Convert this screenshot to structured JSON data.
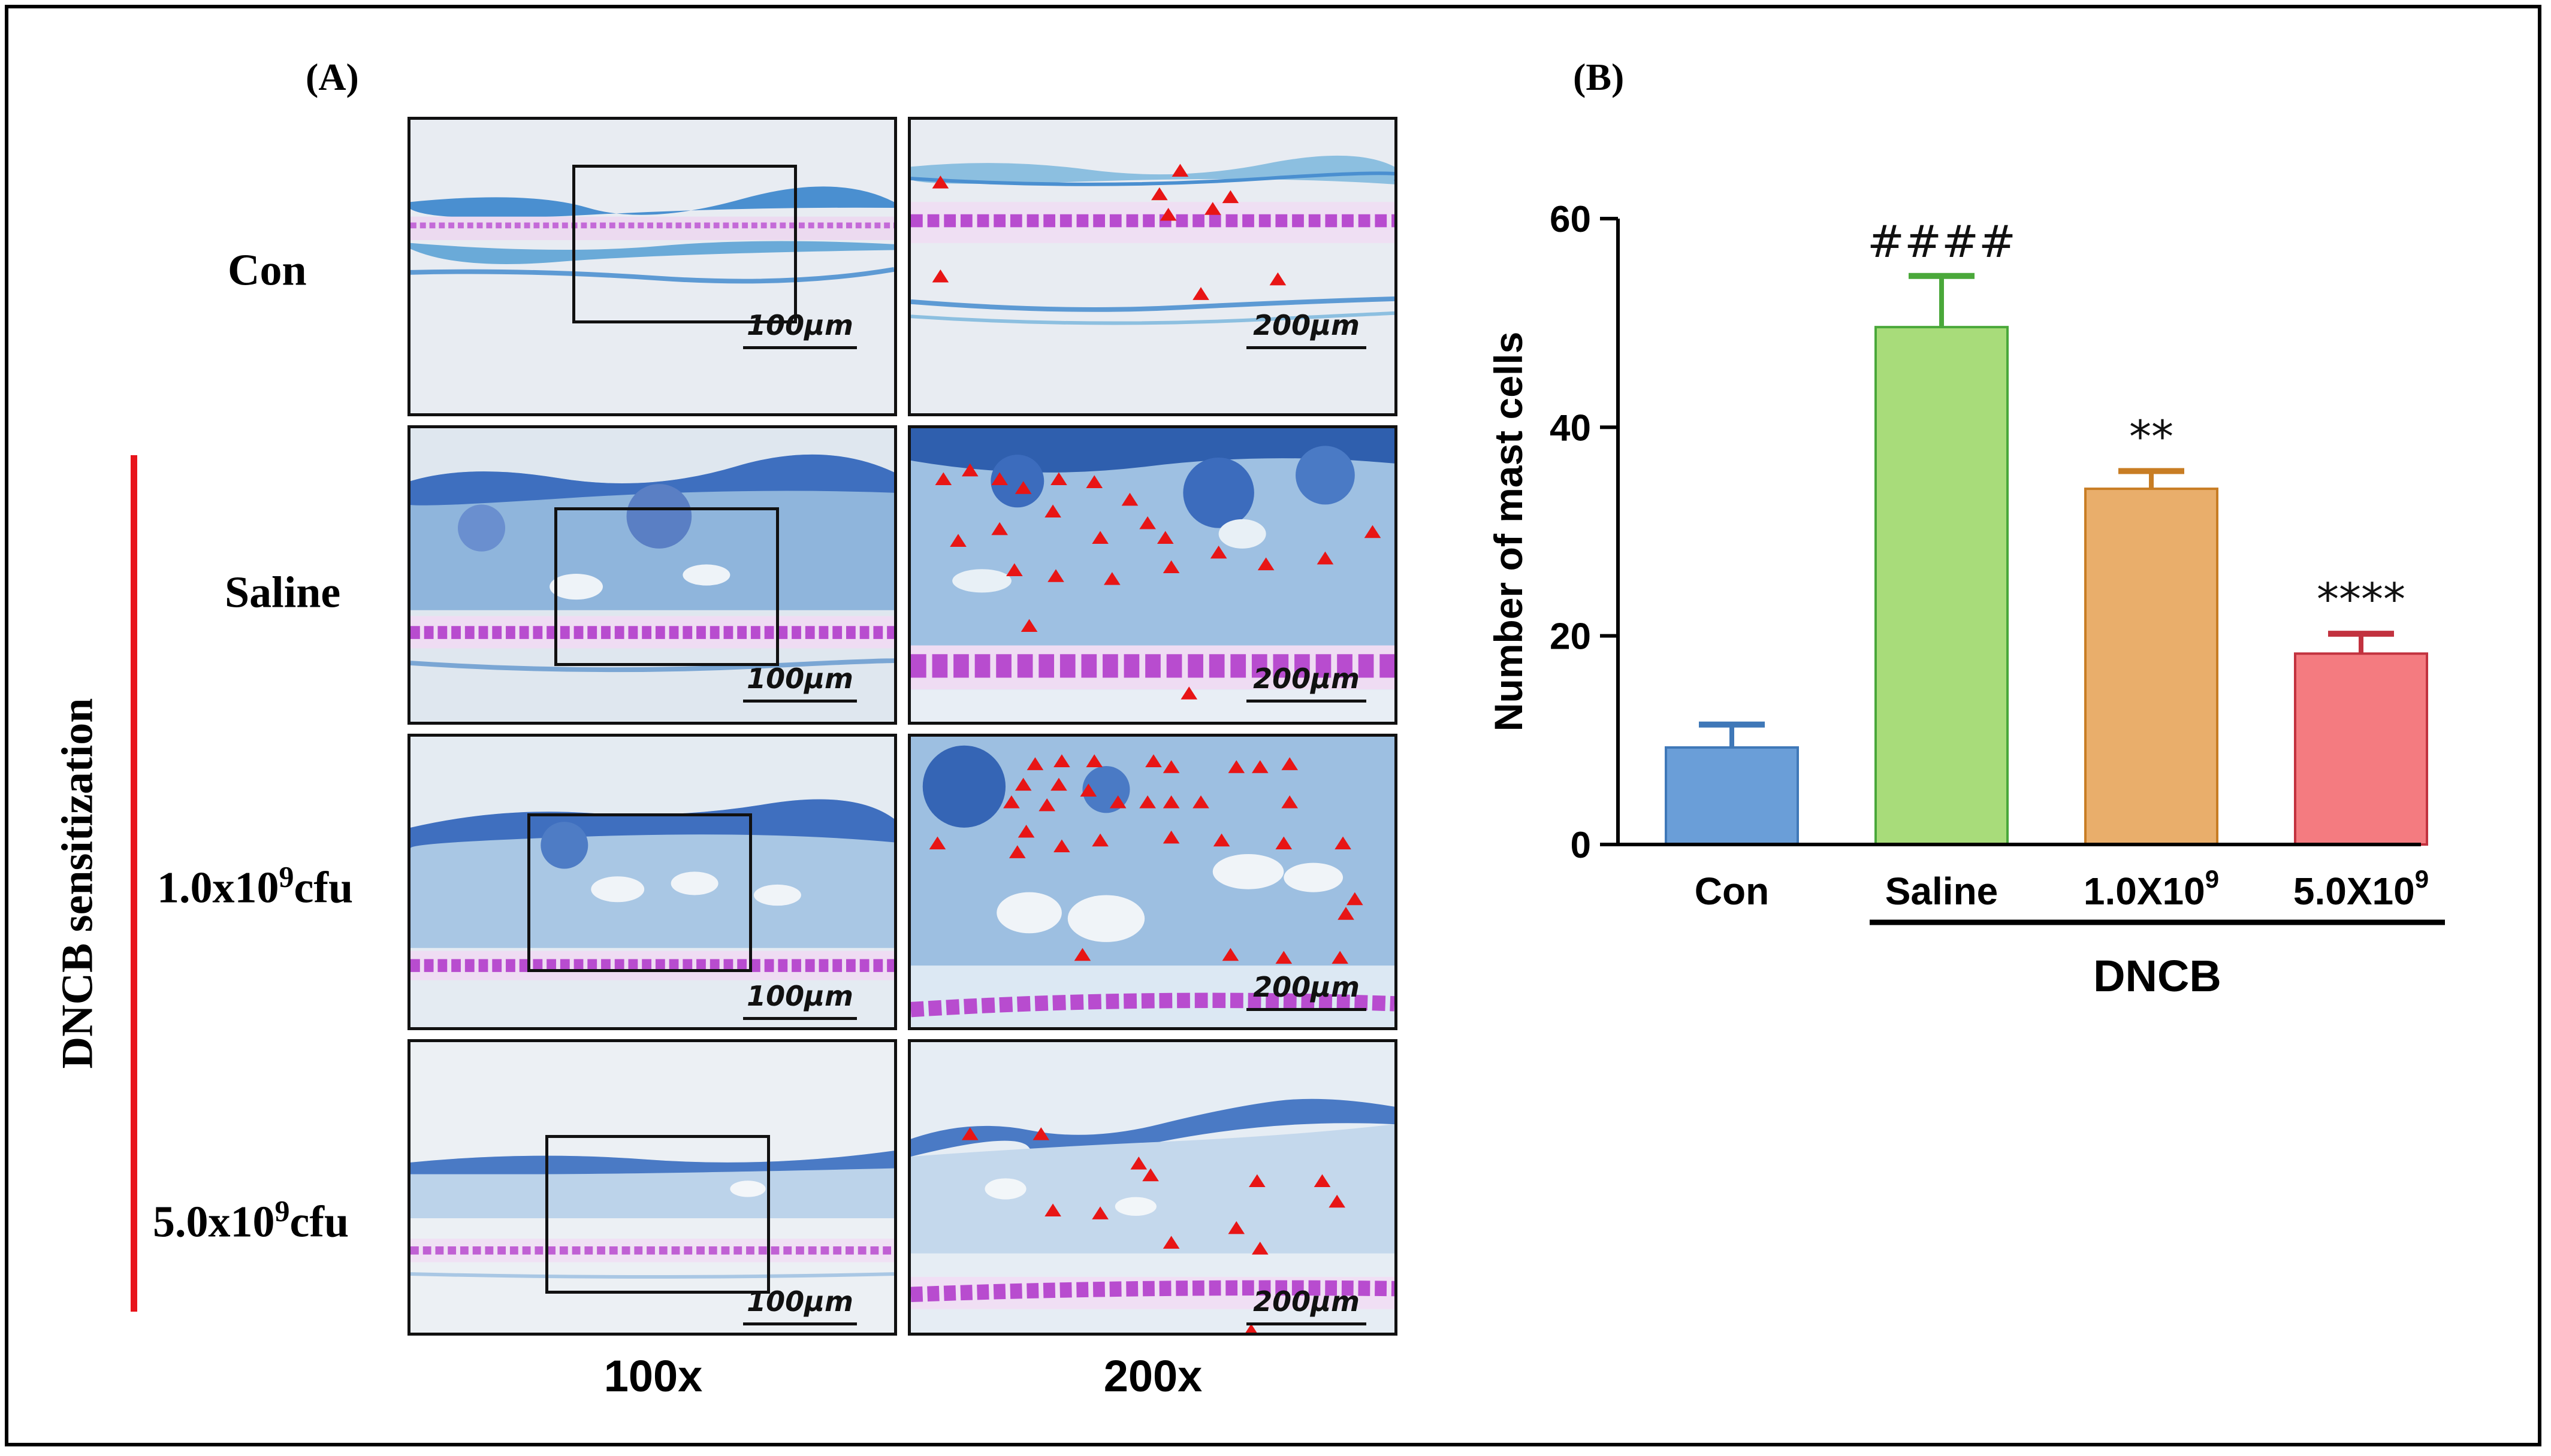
{
  "panel_a": {
    "label": "(A)",
    "rows": [
      {
        "label": "Con",
        "sup": "",
        "suffix": "",
        "scale_100x": "100μm",
        "scale_200x": "200μm"
      },
      {
        "label": "Saline",
        "sup": "",
        "suffix": "",
        "scale_100x": "100μm",
        "scale_200x": "200μm"
      },
      {
        "label": "1.0x10",
        "sup": "9",
        "suffix": "cfu",
        "scale_100x": "100μm",
        "scale_200x": "200μm"
      },
      {
        "label": "5.0x10",
        "sup": "9",
        "suffix": "cfu",
        "scale_100x": "100μm",
        "scale_200x": "200μm"
      }
    ],
    "columns": [
      "100x",
      "200x"
    ],
    "side_label": "DNCB sensitization",
    "colors": {
      "bracket": "#e8141b",
      "arrow": "#e81515",
      "stain_blue": "#3a6fbf",
      "stain_purple": "#b23bc9"
    }
  },
  "panel_b": {
    "label": "(B)",
    "group_label": "DNCB"
  },
  "chart_data": {
    "type": "bar",
    "title": "",
    "xlabel": "",
    "ylabel": "Number of mast cells",
    "ylim": [
      0,
      60
    ],
    "yticks": [
      0,
      20,
      40,
      60
    ],
    "categories": [
      "Con",
      "Saline",
      "1.0X10",
      "5.0X10"
    ],
    "category_sup": [
      "",
      "",
      "9",
      "9"
    ],
    "values": [
      9.3,
      49.6,
      34.1,
      18.3
    ],
    "errors": [
      2.2,
      4.9,
      1.7,
      1.9
    ],
    "significance": [
      "",
      "####",
      "**",
      "****"
    ],
    "bar_colors": [
      "#6a9ed8",
      "#a8dc7a",
      "#e9ae6b",
      "#f47b80"
    ],
    "edge_colors": [
      "#3f78b8",
      "#4aa83a",
      "#c87d24",
      "#c2323f"
    ],
    "grid": false,
    "group_bracket": {
      "label": "DNCB",
      "from": 1,
      "to": 3
    }
  }
}
